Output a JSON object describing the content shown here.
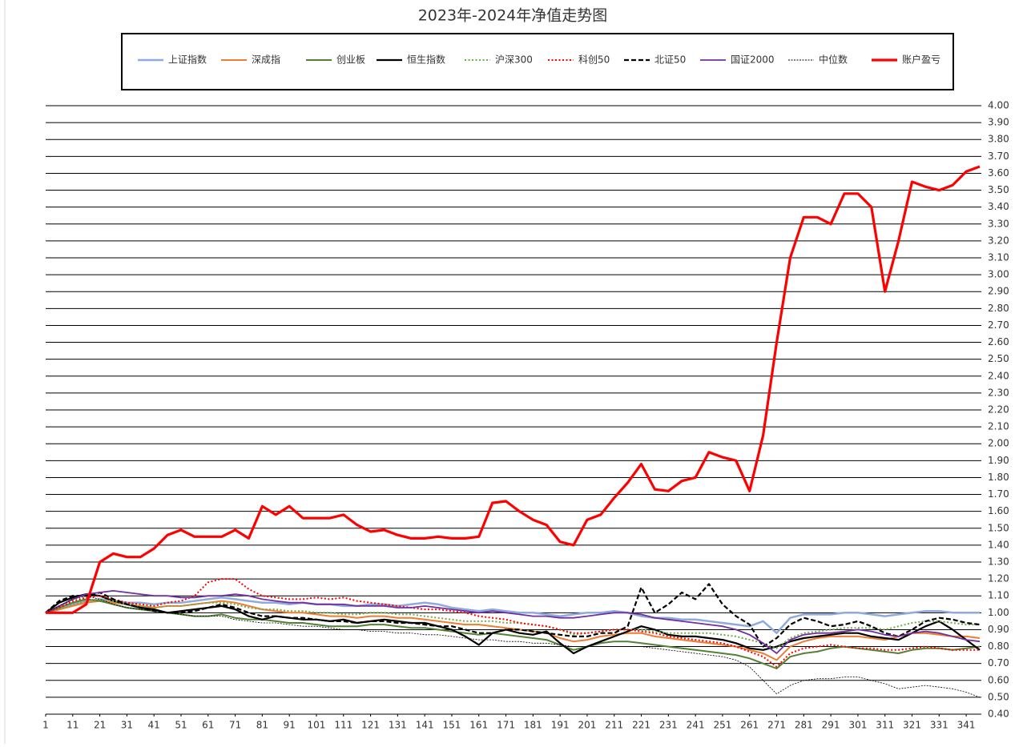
{
  "chart_data": {
    "type": "line",
    "title": "2023年-2024年净值走势图",
    "x": [
      1,
      6,
      11,
      16,
      21,
      26,
      31,
      36,
      41,
      46,
      51,
      56,
      61,
      66,
      71,
      76,
      81,
      86,
      91,
      96,
      101,
      106,
      111,
      116,
      121,
      126,
      131,
      136,
      141,
      146,
      151,
      156,
      161,
      166,
      171,
      176,
      181,
      186,
      191,
      196,
      201,
      206,
      211,
      216,
      221,
      226,
      231,
      236,
      241,
      246,
      251,
      256,
      261,
      266,
      271,
      276,
      281,
      286,
      291,
      296,
      301,
      306,
      311,
      316,
      321,
      326,
      331,
      336,
      341,
      346
    ],
    "xlim": [
      1,
      346
    ],
    "xticks": [
      1,
      11,
      21,
      31,
      41,
      51,
      61,
      71,
      81,
      91,
      101,
      111,
      121,
      131,
      141,
      151,
      161,
      171,
      181,
      191,
      201,
      211,
      221,
      231,
      241,
      251,
      261,
      271,
      281,
      291,
      301,
      311,
      321,
      331,
      341
    ],
    "ylim": [
      0.4,
      4.0
    ],
    "yticks": [
      {
        "value": 0.4,
        "label": "0.40"
      },
      {
        "value": 0.5,
        "label": "0.50"
      },
      {
        "value": 0.6,
        "label": "0.60"
      },
      {
        "value": 0.7,
        "label": "0.70"
      },
      {
        "value": 0.8,
        "label": "0.80"
      },
      {
        "value": 0.9,
        "label": "0.90"
      },
      {
        "value": 1.0,
        "label": "1.00"
      },
      {
        "value": 1.1,
        "label": "1.10"
      },
      {
        "value": 1.2,
        "label": "1.20"
      },
      {
        "value": 1.3,
        "label": "1.30"
      },
      {
        "value": 1.4,
        "label": "1.40"
      },
      {
        "value": 1.5,
        "label": "1.50"
      },
      {
        "value": 1.6,
        "label": "1.60"
      },
      {
        "value": 1.7,
        "label": "1.70"
      },
      {
        "value": 1.8,
        "label": "1.80"
      },
      {
        "value": 1.9,
        "label": "1.90"
      },
      {
        "value": 2.0,
        "label": "2.00"
      },
      {
        "value": 2.1,
        "label": "2.10"
      },
      {
        "value": 2.2,
        "label": "2.20"
      },
      {
        "value": 2.3,
        "label": "2.30"
      },
      {
        "value": 2.4,
        "label": "2.40"
      },
      {
        "value": 2.5,
        "label": "2.50"
      },
      {
        "value": 2.6,
        "label": "2.60"
      },
      {
        "value": 2.7,
        "label": "2.70"
      },
      {
        "value": 2.8,
        "label": "2.80"
      },
      {
        "value": 2.9,
        "label": "2.90"
      },
      {
        "value": 3.0,
        "label": "3.00"
      },
      {
        "value": 3.1,
        "label": "3.10"
      },
      {
        "value": 3.2,
        "label": "3.20"
      },
      {
        "value": 3.3,
        "label": "3.30"
      },
      {
        "value": 3.4,
        "label": "3.40"
      },
      {
        "value": 3.5,
        "label": "3.50"
      },
      {
        "value": 3.6,
        "label": "3.60"
      },
      {
        "value": 3.7,
        "label": "3.70"
      },
      {
        "value": 3.8,
        "label": "3.80"
      },
      {
        "value": 3.9,
        "label": "3.90"
      },
      {
        "value": 4.0,
        "label": "4.00"
      }
    ],
    "grid": true,
    "legend": "top",
    "series": [
      {
        "name": "上证指数",
        "color": "#8faadc",
        "dash": "solid",
        "width": 2.5,
        "values": [
          1.0,
          1.02,
          1.05,
          1.07,
          1.08,
          1.07,
          1.06,
          1.06,
          1.05,
          1.06,
          1.06,
          1.07,
          1.08,
          1.09,
          1.08,
          1.07,
          1.06,
          1.06,
          1.05,
          1.06,
          1.05,
          1.05,
          1.04,
          1.04,
          1.05,
          1.05,
          1.04,
          1.05,
          1.06,
          1.05,
          1.03,
          1.02,
          1.01,
          1.02,
          1.01,
          1.0,
          1.0,
          0.99,
          0.98,
          0.99,
          1.0,
          1.0,
          1.01,
          1.0,
          0.98,
          0.97,
          0.97,
          0.96,
          0.96,
          0.95,
          0.94,
          0.93,
          0.92,
          0.95,
          0.88,
          0.97,
          0.99,
          0.99,
          0.99,
          1.0,
          1.0,
          0.99,
          0.98,
          0.99,
          1.0,
          1.01,
          1.01,
          1.0,
          1.0,
          1.0
        ]
      },
      {
        "name": "深成指",
        "color": "#ed7d31",
        "dash": "solid",
        "width": 2,
        "values": [
          1.0,
          1.02,
          1.04,
          1.06,
          1.07,
          1.06,
          1.05,
          1.04,
          1.03,
          1.04,
          1.04,
          1.05,
          1.06,
          1.07,
          1.06,
          1.04,
          1.02,
          1.01,
          1.0,
          1.0,
          0.99,
          0.98,
          0.98,
          0.97,
          0.98,
          0.98,
          0.97,
          0.97,
          0.96,
          0.95,
          0.94,
          0.93,
          0.93,
          0.92,
          0.91,
          0.9,
          0.89,
          0.88,
          0.85,
          0.83,
          0.84,
          0.86,
          0.87,
          0.88,
          0.88,
          0.86,
          0.85,
          0.84,
          0.83,
          0.82,
          0.81,
          0.8,
          0.78,
          0.76,
          0.72,
          0.8,
          0.83,
          0.85,
          0.86,
          0.86,
          0.86,
          0.85,
          0.84,
          0.86,
          0.88,
          0.88,
          0.87,
          0.86,
          0.86,
          0.85
        ]
      },
      {
        "name": "创业板",
        "color": "#548235",
        "dash": "solid",
        "width": 2,
        "values": [
          1.0,
          1.03,
          1.06,
          1.08,
          1.07,
          1.05,
          1.03,
          1.02,
          1.01,
          1.0,
          0.99,
          0.98,
          0.98,
          0.99,
          0.97,
          0.96,
          0.96,
          0.95,
          0.94,
          0.94,
          0.93,
          0.92,
          0.92,
          0.92,
          0.93,
          0.93,
          0.92,
          0.91,
          0.91,
          0.9,
          0.89,
          0.88,
          0.87,
          0.88,
          0.87,
          0.86,
          0.85,
          0.84,
          0.81,
          0.78,
          0.8,
          0.82,
          0.83,
          0.83,
          0.82,
          0.81,
          0.8,
          0.79,
          0.78,
          0.77,
          0.76,
          0.75,
          0.73,
          0.7,
          0.67,
          0.74,
          0.76,
          0.77,
          0.79,
          0.8,
          0.79,
          0.78,
          0.77,
          0.76,
          0.78,
          0.79,
          0.79,
          0.78,
          0.79,
          0.8
        ]
      },
      {
        "name": "恒生指数",
        "color": "#000000",
        "dash": "solid",
        "width": 2.2,
        "values": [
          1.0,
          1.06,
          1.09,
          1.11,
          1.1,
          1.07,
          1.05,
          1.03,
          1.02,
          1.0,
          1.01,
          1.02,
          1.03,
          1.04,
          1.02,
          0.98,
          0.96,
          0.98,
          0.97,
          0.96,
          0.96,
          0.95,
          0.96,
          0.94,
          0.95,
          0.96,
          0.95,
          0.94,
          0.94,
          0.92,
          0.9,
          0.86,
          0.81,
          0.88,
          0.9,
          0.88,
          0.87,
          0.89,
          0.82,
          0.76,
          0.8,
          0.83,
          0.86,
          0.89,
          0.92,
          0.9,
          0.87,
          0.86,
          0.86,
          0.85,
          0.84,
          0.82,
          0.79,
          0.78,
          0.8,
          0.83,
          0.85,
          0.86,
          0.87,
          0.88,
          0.88,
          0.86,
          0.85,
          0.84,
          0.88,
          0.92,
          0.95,
          0.9,
          0.84,
          0.78
        ]
      },
      {
        "name": "沪深300",
        "color": "#70ad47",
        "dash": "dotted",
        "width": 2,
        "values": [
          1.0,
          1.02,
          1.05,
          1.07,
          1.08,
          1.07,
          1.05,
          1.04,
          1.03,
          1.04,
          1.04,
          1.05,
          1.06,
          1.06,
          1.05,
          1.03,
          1.02,
          1.02,
          1.01,
          1.01,
          1.0,
          1.0,
          0.99,
          0.99,
          1.0,
          1.0,
          0.99,
          0.99,
          0.98,
          0.97,
          0.96,
          0.95,
          0.95,
          0.95,
          0.94,
          0.94,
          0.93,
          0.92,
          0.9,
          0.87,
          0.88,
          0.89,
          0.9,
          0.9,
          0.9,
          0.89,
          0.88,
          0.88,
          0.88,
          0.88,
          0.87,
          0.86,
          0.84,
          0.82,
          0.79,
          0.85,
          0.88,
          0.89,
          0.9,
          0.91,
          0.91,
          0.91,
          0.9,
          0.92,
          0.94,
          0.95,
          0.95,
          0.94,
          0.93,
          0.93
        ]
      },
      {
        "name": "科创50",
        "color": "#ff0000",
        "dash": "dotted",
        "width": 2,
        "values": [
          1.0,
          1.03,
          1.07,
          1.09,
          1.1,
          1.08,
          1.06,
          1.05,
          1.04,
          1.06,
          1.07,
          1.1,
          1.18,
          1.2,
          1.2,
          1.14,
          1.1,
          1.09,
          1.08,
          1.08,
          1.09,
          1.08,
          1.09,
          1.07,
          1.06,
          1.05,
          1.04,
          1.03,
          1.02,
          1.02,
          1.01,
          1.0,
          0.98,
          0.97,
          0.96,
          0.94,
          0.93,
          0.92,
          0.9,
          0.88,
          0.88,
          0.89,
          0.9,
          0.9,
          0.89,
          0.88,
          0.86,
          0.85,
          0.84,
          0.83,
          0.82,
          0.8,
          0.77,
          0.74,
          0.68,
          0.76,
          0.79,
          0.8,
          0.81,
          0.8,
          0.79,
          0.79,
          0.78,
          0.78,
          0.79,
          0.8,
          0.79,
          0.78,
          0.78,
          0.78
        ]
      },
      {
        "name": "北证50",
        "color": "#000000",
        "dash": "dashed",
        "width": 2.2,
        "values": [
          1.0,
          1.07,
          1.1,
          1.1,
          1.12,
          1.08,
          1.05,
          1.03,
          1.01,
          1.0,
          1.0,
          1.01,
          1.03,
          1.05,
          1.03,
          1.0,
          0.98,
          0.98,
          0.97,
          0.97,
          0.96,
          0.95,
          0.95,
          0.94,
          0.95,
          0.95,
          0.94,
          0.94,
          0.93,
          0.92,
          0.92,
          0.9,
          0.88,
          0.88,
          0.9,
          0.9,
          0.89,
          0.88,
          0.87,
          0.86,
          0.86,
          0.88,
          0.88,
          0.92,
          1.15,
          1.0,
          1.05,
          1.12,
          1.08,
          1.17,
          1.05,
          0.98,
          0.93,
          0.8,
          0.85,
          0.93,
          0.97,
          0.95,
          0.92,
          0.93,
          0.95,
          0.92,
          0.88,
          0.86,
          0.9,
          0.95,
          0.97,
          0.96,
          0.94,
          0.93
        ]
      },
      {
        "name": "国证2000",
        "color": "#7030a0",
        "dash": "solid",
        "width": 1.8,
        "values": [
          1.0,
          1.04,
          1.08,
          1.11,
          1.12,
          1.13,
          1.12,
          1.11,
          1.1,
          1.1,
          1.09,
          1.09,
          1.1,
          1.1,
          1.11,
          1.1,
          1.08,
          1.07,
          1.06,
          1.06,
          1.05,
          1.05,
          1.05,
          1.04,
          1.04,
          1.04,
          1.03,
          1.03,
          1.04,
          1.03,
          1.02,
          1.01,
          1.0,
          1.01,
          1.0,
          0.99,
          0.98,
          0.98,
          0.97,
          0.97,
          0.98,
          0.99,
          1.0,
          1.0,
          0.99,
          0.97,
          0.96,
          0.95,
          0.94,
          0.93,
          0.92,
          0.9,
          0.87,
          0.82,
          0.76,
          0.84,
          0.87,
          0.88,
          0.88,
          0.89,
          0.9,
          0.89,
          0.87,
          0.86,
          0.88,
          0.89,
          0.88,
          0.86,
          0.84,
          0.83
        ]
      },
      {
        "name": "中位数",
        "color": "#000000",
        "dash": "fine",
        "width": 0.8,
        "values": [
          1.0,
          1.04,
          1.08,
          1.1,
          1.08,
          1.05,
          1.03,
          1.02,
          1.01,
          1.0,
          0.99,
          0.98,
          0.98,
          0.98,
          0.96,
          0.95,
          0.94,
          0.94,
          0.93,
          0.92,
          0.92,
          0.91,
          0.9,
          0.9,
          0.89,
          0.89,
          0.88,
          0.88,
          0.87,
          0.87,
          0.86,
          0.85,
          0.84,
          0.84,
          0.83,
          0.83,
          0.82,
          0.82,
          0.81,
          0.8,
          0.8,
          0.8,
          0.8,
          0.8,
          0.8,
          0.79,
          0.78,
          0.77,
          0.76,
          0.75,
          0.74,
          0.72,
          0.68,
          0.6,
          0.52,
          0.57,
          0.6,
          0.61,
          0.61,
          0.62,
          0.62,
          0.6,
          0.58,
          0.55,
          0.56,
          0.57,
          0.56,
          0.55,
          0.53,
          0.5
        ]
      },
      {
        "name": "账户盈亏",
        "color": "#ff0000",
        "dash": "solid",
        "width": 3.2,
        "values": [
          1.0,
          1.0,
          1.0,
          1.05,
          1.3,
          1.35,
          1.33,
          1.33,
          1.38,
          1.46,
          1.49,
          1.45,
          1.45,
          1.45,
          1.49,
          1.44,
          1.63,
          1.58,
          1.63,
          1.56,
          1.56,
          1.56,
          1.58,
          1.52,
          1.48,
          1.49,
          1.46,
          1.44,
          1.44,
          1.45,
          1.44,
          1.44,
          1.45,
          1.65,
          1.66,
          1.6,
          1.55,
          1.52,
          1.42,
          1.4,
          1.55,
          1.58,
          1.68,
          1.77,
          1.88,
          1.73,
          1.72,
          1.78,
          1.8,
          1.95,
          1.92,
          1.9,
          1.72,
          2.05,
          2.6,
          3.1,
          3.34,
          3.34,
          3.3,
          3.48,
          3.48,
          3.4,
          2.9,
          3.2,
          3.55,
          3.52,
          3.5,
          3.53,
          3.61,
          3.64
        ]
      }
    ]
  }
}
